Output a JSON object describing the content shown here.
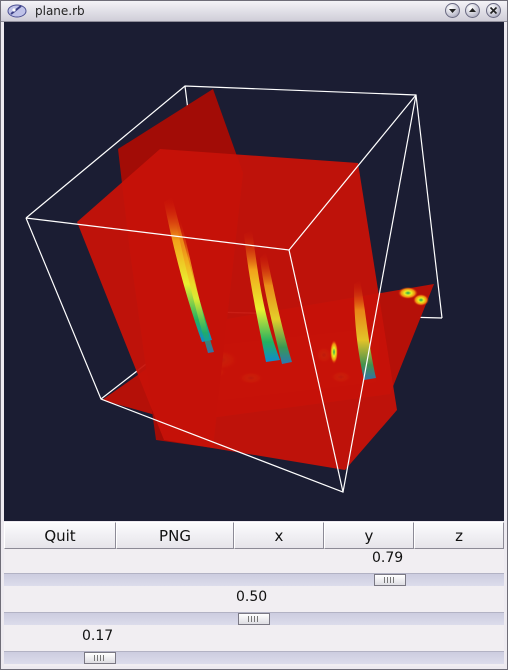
{
  "window": {
    "title": "plane.rb",
    "icon": "ruby-app-icon",
    "controls": [
      "minimize-icon",
      "maximize-icon",
      "close-icon"
    ]
  },
  "viewport": {
    "description_icon": "3d-cut-planes-render",
    "background_color": "#1b1d33"
  },
  "toolbar": {
    "quit_label": "Quit",
    "png_label": "PNG",
    "x_label": "x",
    "y_label": "y",
    "z_label": "z"
  },
  "sliders": [
    {
      "value_label": "0.79",
      "value": 0.79
    },
    {
      "value_label": "0.50",
      "value": 0.5
    },
    {
      "value_label": "0.17",
      "value": 0.17
    }
  ]
}
